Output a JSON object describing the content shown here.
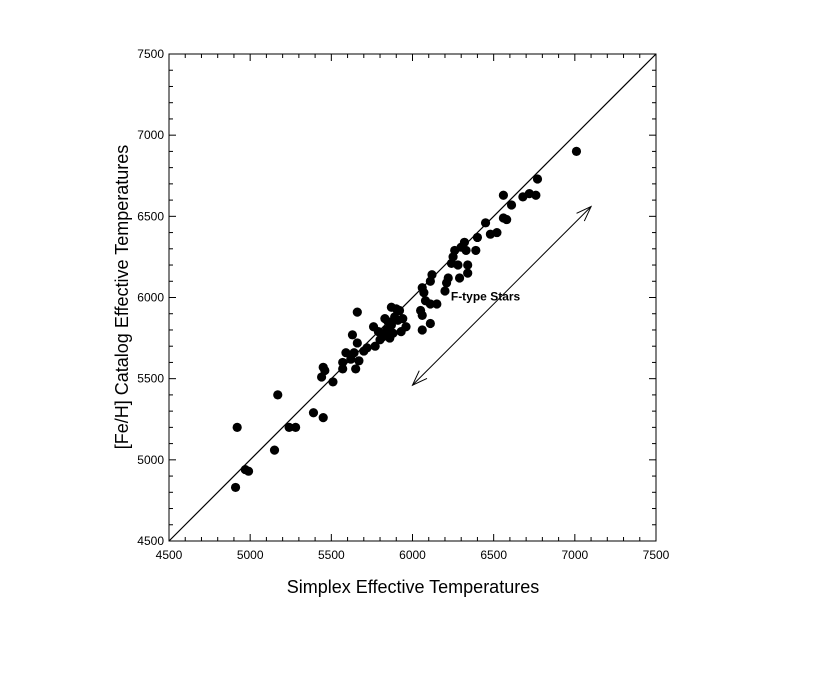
{
  "chart_data": {
    "type": "scatter",
    "title": "",
    "xlabel": "Simplex Effective Temperatures",
    "ylabel": "[Fe/H] Catalog Effective Temperatures",
    "xlim": [
      4500,
      7500
    ],
    "ylim": [
      4500,
      7500
    ],
    "xticks": [
      4500,
      5000,
      5500,
      6000,
      6500,
      7000,
      7500
    ],
    "yticks": [
      4500,
      5000,
      5500,
      6000,
      6500,
      7000,
      7500
    ],
    "grid": false,
    "reference_line": {
      "type": "identity",
      "from": [
        4500,
        4500
      ],
      "to": [
        7500,
        7500
      ]
    },
    "annotation": {
      "text": "F-type Stars",
      "x": 6450,
      "y": 5980
    },
    "arrow": {
      "from": [
        6000,
        5460
      ],
      "to": [
        7100,
        6560
      ],
      "style": "double-headed"
    },
    "series": [
      {
        "marker": "filled-circle",
        "color": "#000000",
        "points": [
          [
            7010,
            6900
          ],
          [
            6770,
            6730
          ],
          [
            6760,
            6630
          ],
          [
            6720,
            6640
          ],
          [
            6680,
            6620
          ],
          [
            6610,
            6570
          ],
          [
            6580,
            6480
          ],
          [
            6560,
            6490
          ],
          [
            6560,
            6630
          ],
          [
            6520,
            6400
          ],
          [
            6480,
            6390
          ],
          [
            6450,
            6460
          ],
          [
            6400,
            6370
          ],
          [
            6390,
            6290
          ],
          [
            6340,
            6200
          ],
          [
            6340,
            6150
          ],
          [
            6330,
            6290
          ],
          [
            6320,
            6340
          ],
          [
            6300,
            6310
          ],
          [
            6290,
            6120
          ],
          [
            6280,
            6200
          ],
          [
            6260,
            6290
          ],
          [
            6250,
            6250
          ],
          [
            6240,
            6210
          ],
          [
            6220,
            6120
          ],
          [
            6210,
            6090
          ],
          [
            6200,
            6040
          ],
          [
            6150,
            5960
          ],
          [
            6120,
            6140
          ],
          [
            6110,
            6100
          ],
          [
            6110,
            5960
          ],
          [
            6110,
            5840
          ],
          [
            6080,
            5980
          ],
          [
            6070,
            6030
          ],
          [
            6060,
            6060
          ],
          [
            6060,
            5890
          ],
          [
            6060,
            5800
          ],
          [
            6050,
            5920
          ],
          [
            5960,
            5820
          ],
          [
            5940,
            5870
          ],
          [
            5930,
            5790
          ],
          [
            5920,
            5920
          ],
          [
            5910,
            5860
          ],
          [
            5900,
            5930
          ],
          [
            5890,
            5880
          ],
          [
            5880,
            5780
          ],
          [
            5870,
            5940
          ],
          [
            5870,
            5830
          ],
          [
            5860,
            5750
          ],
          [
            5850,
            5850
          ],
          [
            5840,
            5800
          ],
          [
            5830,
            5870
          ],
          [
            5820,
            5760
          ],
          [
            5800,
            5740
          ],
          [
            5790,
            5790
          ],
          [
            5770,
            5700
          ],
          [
            5760,
            5820
          ],
          [
            5720,
            5690
          ],
          [
            5700,
            5670
          ],
          [
            5670,
            5610
          ],
          [
            5660,
            5910
          ],
          [
            5660,
            5720
          ],
          [
            5650,
            5560
          ],
          [
            5640,
            5660
          ],
          [
            5630,
            5770
          ],
          [
            5620,
            5620
          ],
          [
            5590,
            5660
          ],
          [
            5570,
            5600
          ],
          [
            5570,
            5560
          ],
          [
            5510,
            5480
          ],
          [
            5460,
            5550
          ],
          [
            5450,
            5570
          ],
          [
            5440,
            5510
          ],
          [
            5450,
            5260
          ],
          [
            5390,
            5290
          ],
          [
            5280,
            5200
          ],
          [
            5240,
            5200
          ],
          [
            5170,
            5400
          ],
          [
            5150,
            5060
          ],
          [
            4990,
            4930
          ],
          [
            4970,
            4940
          ],
          [
            4920,
            5200
          ],
          [
            4910,
            4830
          ]
        ]
      }
    ]
  }
}
